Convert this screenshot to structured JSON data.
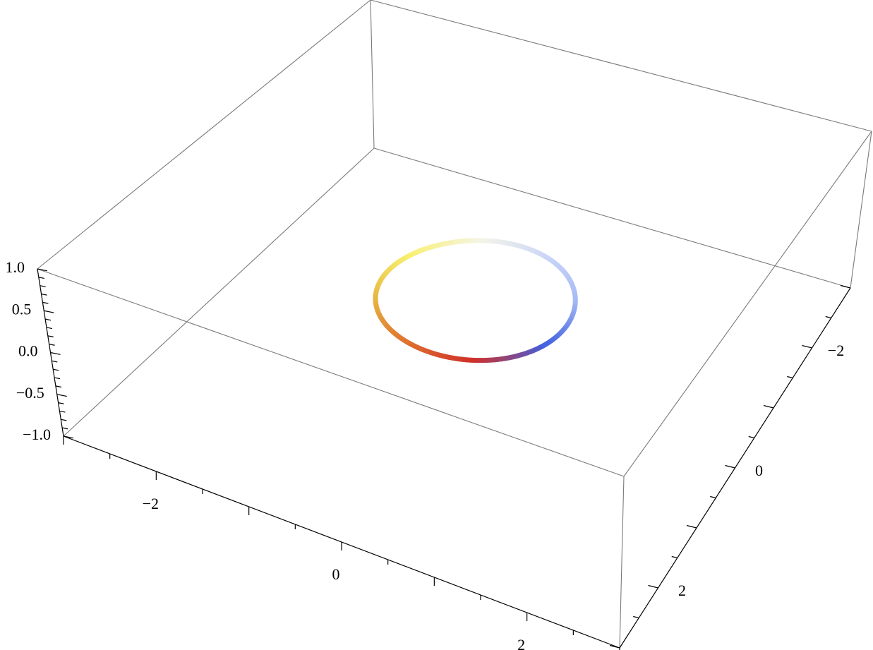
{
  "chart_data": {
    "type": "line",
    "dimension": "3d",
    "description_free": true,
    "series": [
      {
        "curve": "circle",
        "radius": 1,
        "z": 0,
        "colors": [
          "#4060e0",
          "#d03028",
          "#e07830",
          "#e8b840",
          "#f8f070",
          "#f4f4e8",
          "#c8d4f8",
          "#a4b8f4",
          "#4060e0"
        ]
      }
    ],
    "xlim": [
      -3,
      3
    ],
    "ylim": [
      -3,
      3
    ],
    "zlim": [
      -1,
      1
    ],
    "x_ticks": [
      {
        "value": -2,
        "label": "−2"
      },
      {
        "value": 0,
        "label": "0"
      },
      {
        "value": 2,
        "label": "2"
      }
    ],
    "y_ticks": [
      {
        "value": 2,
        "label": "2"
      },
      {
        "value": 0,
        "label": "0"
      },
      {
        "value": -2,
        "label": "−2"
      }
    ],
    "z_ticks": [
      {
        "value": 1.0,
        "label": "1.0"
      },
      {
        "value": 0.5,
        "label": "0.5"
      },
      {
        "value": 0.0,
        "label": "0.0"
      },
      {
        "value": -0.5,
        "label": "−0.5"
      },
      {
        "value": -1.0,
        "label": "−1.0"
      }
    ],
    "box": true,
    "grid": false,
    "title": "",
    "xlabel": "",
    "ylabel": "",
    "zlabel": ""
  }
}
